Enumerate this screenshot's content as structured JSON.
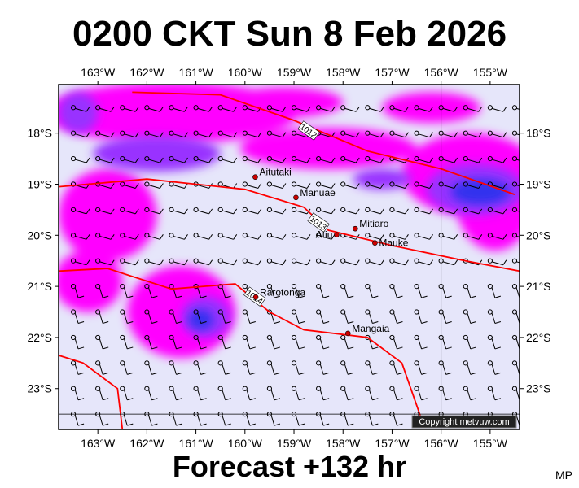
{
  "title": "0200 CKT Sun 8 Feb 2026",
  "footer": "Forecast +132 hr",
  "credit": "MP",
  "copyright": "Copyright metvuw.com",
  "colors": {
    "background": "#e6e6fa",
    "magenta": "#ff00ff",
    "violet": "#9933ff",
    "purple": "#7722ee",
    "blue": "#3333ee",
    "isobar": "#ff0000",
    "town": "#cc0000"
  },
  "map": {
    "lon_range": [
      -163.8,
      -154.4
    ],
    "lat_range": [
      -23.8,
      -17.05
    ],
    "lon_ticks": [
      -163,
      -162,
      -161,
      -160,
      -159,
      -158,
      -157,
      -156,
      -155
    ],
    "lon_labels": [
      "163°W",
      "162°W",
      "161°W",
      "160°W",
      "159°W",
      "158°W",
      "157°W",
      "156°W",
      "155°W"
    ],
    "lat_ticks": [
      -18,
      -19,
      -20,
      -21,
      -22,
      -23
    ],
    "lat_labels": [
      "18°S",
      "19°S",
      "20°S",
      "21°S",
      "22°S",
      "23°S"
    ],
    "towns": [
      {
        "name": "Aitutaki",
        "lon": -159.79,
        "lat": -18.86
      },
      {
        "name": "Manuae",
        "lon": -158.96,
        "lat": -19.26
      },
      {
        "name": "Mitiaro",
        "lon": -157.75,
        "lat": -19.87
      },
      {
        "name": "Atiu",
        "lon": -158.13,
        "lat": -19.99
      },
      {
        "name": "Mauke",
        "lon": -157.35,
        "lat": -20.15
      },
      {
        "name": "Rarotonga",
        "lon": -159.78,
        "lat": -21.21
      },
      {
        "name": "Mangaia",
        "lon": -157.9,
        "lat": -21.92
      }
    ],
    "isobars": [
      {
        "label": "1012",
        "points": [
          [
            -162.3,
            -17.2
          ],
          [
            -160.5,
            -17.25
          ],
          [
            -159,
            -17.75
          ],
          [
            -157.5,
            -18.35
          ],
          [
            -156,
            -18.7
          ],
          [
            -154.5,
            -19.2
          ]
        ],
        "label_at": [
          -158.7,
          -17.95
        ]
      },
      {
        "label": "1013",
        "points": [
          [
            -163.8,
            -19.05
          ],
          [
            -162,
            -18.9
          ],
          [
            -160,
            -19.1
          ],
          [
            -158.8,
            -19.45
          ],
          [
            -158.3,
            -19.9
          ],
          [
            -157,
            -20.2
          ],
          [
            -155.5,
            -20.5
          ],
          [
            -154.4,
            -20.7
          ]
        ],
        "label_at": [
          -158.5,
          -19.75
        ]
      },
      {
        "label": "1014",
        "points": [
          [
            -163.8,
            -20.7
          ],
          [
            -162.8,
            -20.65
          ],
          [
            -161.5,
            -21.05
          ],
          [
            -160.2,
            -20.95
          ],
          [
            -159.5,
            -21.5
          ],
          [
            -158.8,
            -21.85
          ],
          [
            -157.5,
            -22.0
          ],
          [
            -156.8,
            -22.5
          ],
          [
            -156.4,
            -23.6
          ]
        ],
        "label_at": [
          -159.8,
          -21.2
        ]
      },
      {
        "label": "",
        "points": [
          [
            -163.8,
            -22.35
          ],
          [
            -163.3,
            -22.5
          ],
          [
            -162.6,
            -23.0
          ],
          [
            -162.5,
            -23.8
          ]
        ],
        "label_at": null
      }
    ],
    "vertical_line_lon": -156,
    "horizontal_line_lat": -23.5,
    "shading": {
      "magenta": [
        {
          "lon": -161.5,
          "lat": -17.6,
          "rx": 2.6,
          "ry": 0.6
        },
        {
          "lon": -158.3,
          "lat": -18.3,
          "rx": 1.8,
          "ry": 0.4
        },
        {
          "lon": -155.4,
          "lat": -18.8,
          "rx": 1.4,
          "ry": 0.8
        },
        {
          "lon": -154.9,
          "lat": -19.3,
          "rx": 0.8,
          "ry": 1.0
        },
        {
          "lon": -162.8,
          "lat": -19.6,
          "rx": 1.0,
          "ry": 0.9
        },
        {
          "lon": -161.3,
          "lat": -21.5,
          "rx": 1.1,
          "ry": 0.9
        },
        {
          "lon": -159.2,
          "lat": -17.4,
          "rx": 1.2,
          "ry": 0.3
        },
        {
          "lon": -163.2,
          "lat": -20.9,
          "rx": 0.7,
          "ry": 0.6
        },
        {
          "lon": -156.2,
          "lat": -17.5,
          "rx": 1.0,
          "ry": 0.3
        }
      ],
      "violet": [
        {
          "lon": -161.8,
          "lat": -18.4,
          "rx": 1.3,
          "ry": 0.35
        },
        {
          "lon": -163.4,
          "lat": -17.6,
          "rx": 0.4,
          "ry": 0.4
        },
        {
          "lon": -160.8,
          "lat": -21.6,
          "rx": 0.5,
          "ry": 0.4
        },
        {
          "lon": -155.3,
          "lat": -19.1,
          "rx": 1.0,
          "ry": 0.5
        },
        {
          "lon": -157.2,
          "lat": -18.9,
          "rx": 0.6,
          "ry": 0.2
        }
      ],
      "blue": [
        {
          "lon": -155.2,
          "lat": -19.15,
          "rx": 0.6,
          "ry": 0.25
        },
        {
          "lon": -160.9,
          "lat": -21.65,
          "rx": 0.25,
          "ry": 0.2
        }
      ]
    }
  }
}
